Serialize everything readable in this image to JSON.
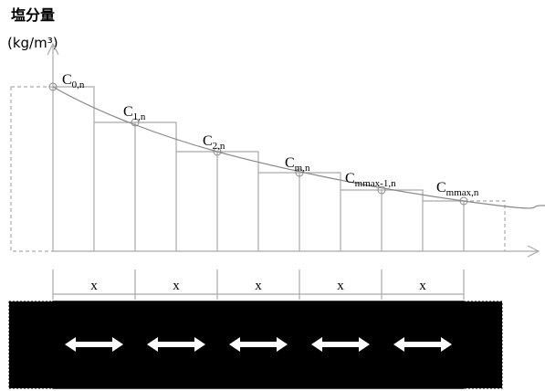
{
  "header": {
    "title": "塩分量",
    "unit": "(kg/m³)"
  },
  "nodes": [
    {
      "base": "C",
      "sub": "0,n"
    },
    {
      "base": "C",
      "sub": "1,n"
    },
    {
      "base": "C",
      "sub": "2,n"
    },
    {
      "base": "C",
      "sub": "m,n"
    },
    {
      "base": "C",
      "sub": "mmax-1,n"
    },
    {
      "base": "C",
      "sub": "mmax,n"
    }
  ],
  "intervals": [
    "x",
    "x",
    "x",
    "x",
    "x"
  ]
}
